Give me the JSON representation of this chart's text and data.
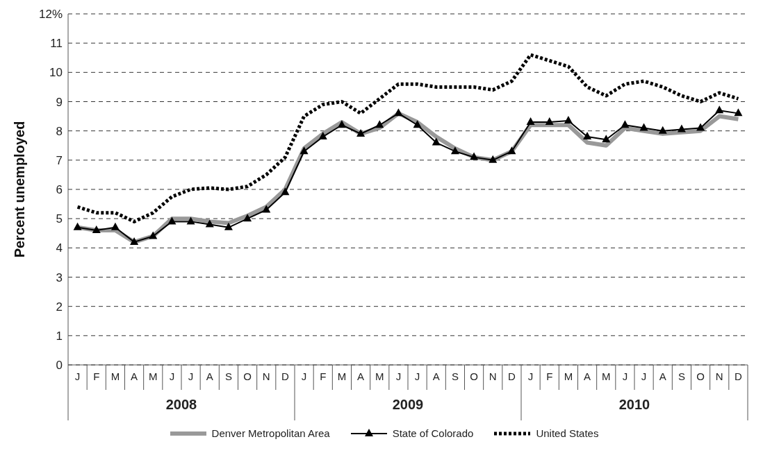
{
  "chart_data": {
    "type": "line",
    "ylabel": "Percent unemployed",
    "categories": [
      "J",
      "F",
      "M",
      "A",
      "M",
      "J",
      "J",
      "A",
      "S",
      "O",
      "N",
      "D",
      "J",
      "F",
      "M",
      "A",
      "M",
      "J",
      "J",
      "A",
      "S",
      "O",
      "N",
      "D",
      "J",
      "F",
      "M",
      "A",
      "M",
      "J",
      "J",
      "A",
      "S",
      "O",
      "N",
      "D"
    ],
    "annotations": [
      "2008",
      "2009",
      "2010"
    ],
    "series": [
      {
        "name": "Denver Metropolitan Area",
        "color": "#999999",
        "marker": "none",
        "line_style": "solid",
        "values": [
          4.7,
          4.6,
          4.6,
          4.2,
          4.4,
          5.0,
          5.0,
          4.9,
          4.85,
          5.1,
          5.4,
          6.0,
          7.4,
          7.9,
          8.3,
          7.9,
          8.1,
          8.6,
          8.3,
          7.8,
          7.4,
          7.1,
          7.0,
          7.3,
          8.2,
          8.2,
          8.2,
          7.6,
          7.5,
          8.1,
          8.0,
          7.9,
          7.95,
          8.0,
          8.5,
          8.4
        ]
      },
      {
        "name": "State of Colorado",
        "color": "#000000",
        "marker": "triangle",
        "line_style": "solid",
        "values": [
          4.7,
          4.6,
          4.7,
          4.2,
          4.4,
          4.9,
          4.9,
          4.8,
          4.7,
          5.0,
          5.3,
          5.9,
          7.3,
          7.8,
          8.2,
          7.9,
          8.2,
          8.6,
          8.2,
          7.6,
          7.3,
          7.1,
          7.0,
          7.3,
          8.3,
          8.3,
          8.35,
          7.8,
          7.7,
          8.2,
          8.1,
          8.0,
          8.05,
          8.1,
          8.7,
          8.6
        ]
      },
      {
        "name": "United States",
        "color": "#000000",
        "marker": "none",
        "line_style": "dotted",
        "values": [
          5.4,
          5.2,
          5.2,
          4.9,
          5.2,
          5.75,
          6.0,
          6.05,
          6.0,
          6.1,
          6.5,
          7.1,
          8.5,
          8.9,
          9.0,
          8.6,
          9.1,
          9.6,
          9.6,
          9.5,
          9.5,
          9.5,
          9.4,
          9.7,
          10.6,
          10.4,
          10.2,
          9.5,
          9.2,
          9.6,
          9.7,
          9.5,
          9.2,
          9.0,
          9.3,
          9.1
        ]
      }
    ],
    "ylim": [
      0,
      12
    ],
    "yticks": [
      0,
      1,
      2,
      3,
      4,
      5,
      6,
      7,
      8,
      9,
      10,
      11,
      {
        "value": 12,
        "label": "12%"
      }
    ],
    "grid": "y",
    "legend": "bottom"
  }
}
